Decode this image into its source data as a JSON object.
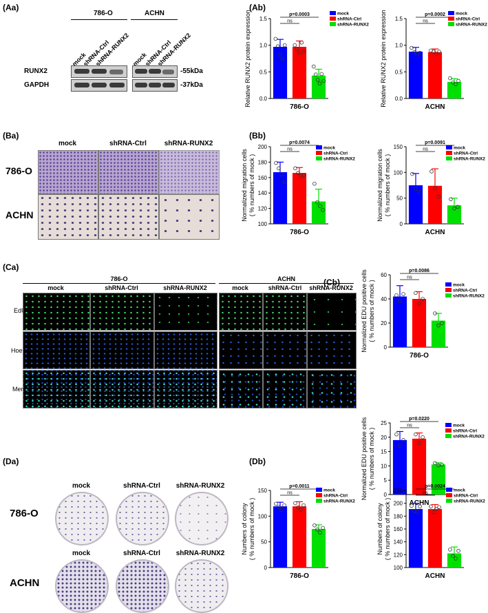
{
  "labels": {
    "Aa": "(Aa)",
    "Ab": "(Ab)",
    "Ba": "(Ba)",
    "Bb": "(Bb)",
    "Ca": "(Ca)",
    "Cb": "(Cb)",
    "Da": "(Da)",
    "Db": "(Db)"
  },
  "blot": {
    "cell_lines": [
      "786-O",
      "ACHN"
    ],
    "lanes": [
      "mock",
      "shRNA-Ctrl",
      "shRNA-RUNX2"
    ],
    "proteins": [
      "RUNX2",
      "GAPDH"
    ],
    "sizes": [
      "-55kDa",
      "-37kDa"
    ]
  },
  "migration": {
    "columns": [
      "mock",
      "shRNA-Ctrl",
      "shRNA-RUNX2"
    ],
    "rows": [
      "786-O",
      "ACHN"
    ]
  },
  "edu": {
    "groups": [
      "786-O",
      "ACHN"
    ],
    "columns": [
      "mock",
      "shRNA-Ctrl",
      "shRNA-RUNX2"
    ],
    "rows": [
      "EdU",
      "Hoechst",
      "Merge"
    ]
  },
  "colony": {
    "columns": [
      "mock",
      "shRNA-Ctrl",
      "shRNA-RUNX2"
    ],
    "rows": [
      "786-O",
      "ACHN"
    ]
  },
  "colors": {
    "mock": "#0000ff",
    "ctrl": "#ff0000",
    "runx2": "#00e000"
  },
  "chart_data": [
    {
      "id": "ab1",
      "type": "bar",
      "categories": [
        "mock",
        "shRNA-Ctrl",
        "shRNA-RUNX2"
      ],
      "values": [
        0.97,
        0.97,
        0.43
      ],
      "errors": [
        0.14,
        0.11,
        0.12
      ],
      "points": [
        [
          1.12,
          0.98,
          0.82,
          0.74,
          1.0
        ],
        [
          1.0,
          0.93,
          0.86,
          1.05,
          0.88
        ],
        [
          0.6,
          0.45,
          0.35,
          0.28,
          0.46,
          0.33
        ]
      ],
      "ylim": [
        0,
        1.5
      ],
      "yticks": [
        "0.0",
        "0.5",
        "1.0",
        "1.5"
      ],
      "ylabel": "Relative RUNX2 protein expression",
      "xlabel": "786-O",
      "pvalue": "p=0.0003",
      "ns": "ns",
      "legend": [
        "mock",
        "shRNA-Ctrl",
        "shRNA-RUNX2"
      ]
    },
    {
      "id": "ab2",
      "type": "bar",
      "categories": [
        "mock",
        "shRNA-Ctrl",
        "shRNA-RUNX2"
      ],
      "values": [
        0.88,
        0.87,
        0.31
      ],
      "errors": [
        0.08,
        0.06,
        0.06
      ],
      "points": [
        [
          0.95,
          0.87,
          0.83,
          0.86
        ],
        [
          0.9,
          0.88,
          0.84,
          0.88
        ],
        [
          0.38,
          0.3,
          0.27,
          0.33
        ]
      ],
      "ylim": [
        0,
        1.5
      ],
      "yticks": [
        "0.0",
        "0.5",
        "1.0",
        "1.5"
      ],
      "ylabel": "Relative RUNX2 protein expression",
      "xlabel": "ACHN",
      "pvalue": "p=0.0002",
      "ns": "ns",
      "legend": [
        "mock",
        "shRNA-Ctrl",
        "shRNA-RUNX2"
      ]
    },
    {
      "id": "bb1",
      "type": "bar",
      "categories": [
        "mock",
        "shRNA-Ctrl",
        "shRNA-RUNX2"
      ],
      "values": [
        167,
        166,
        129
      ],
      "errors": [
        13,
        7,
        16
      ],
      "points": [
        [
          179,
          172,
          164,
          154
        ],
        [
          172,
          166,
          162,
          163
        ],
        [
          152,
          128,
          123,
          118
        ]
      ],
      "ylim": [
        100,
        200
      ],
      "yticks": [
        "100",
        "120",
        "140",
        "160",
        "180",
        "200"
      ],
      "ylabel": "Normalized migration cells",
      "ylabel2": "( % numbers of mock )",
      "xlabel": "786-O",
      "pvalue": "p=0.0074",
      "ns": "ns",
      "legend": [
        "mock",
        "shRNA-Ctrl",
        "shRNA-RUNX2"
      ]
    },
    {
      "id": "bb2",
      "type": "bar",
      "categories": [
        "mock",
        "shRNA-Ctrl",
        "shRNA-RUNX2"
      ],
      "values": [
        75,
        74,
        36
      ],
      "errors": [
        23,
        33,
        14
      ],
      "points": [
        [
          97,
          68,
          62
        ],
        [
          102,
          70,
          53
        ],
        [
          48,
          30,
          33
        ]
      ],
      "ylim": [
        0,
        150
      ],
      "yticks": [
        "0",
        "50",
        "100",
        "150"
      ],
      "ylabel": "Normalized migration cells",
      "ylabel2": "( % numbers of mock )",
      "xlabel": "ACHN",
      "pvalue": "p=0.0091",
      "ns": "ns",
      "legend": [
        "mock",
        "shRNA-Ctrl",
        "shRNA-RUNX2"
      ]
    },
    {
      "id": "cb1",
      "type": "bar",
      "categories": [
        "mock",
        "shRNA-Ctrl",
        "shRNA-RUNX2"
      ],
      "values": [
        42,
        40,
        22
      ],
      "errors": [
        9,
        6,
        6
      ],
      "points": [
        [
          43,
          38,
          44
        ],
        [
          45,
          36,
          40
        ],
        [
          28,
          18,
          20
        ]
      ],
      "ylim": [
        0,
        60
      ],
      "yticks": [
        "0",
        "20",
        "40",
        "60"
      ],
      "ylabel": "Normalized EDU positive cells",
      "ylabel2": "( % numbers of mock )",
      "xlabel": "786-O",
      "pvalue": "p=0.0086",
      "ns": "ns",
      "legend": [
        "mock",
        "shRNA-Ctrl",
        "shRNA-RUNX2"
      ]
    },
    {
      "id": "cb2",
      "type": "bar",
      "categories": [
        "mock",
        "shRNA-Ctrl",
        "shRNA-RUNX2"
      ],
      "values": [
        19,
        19.5,
        10.5
      ],
      "errors": [
        3,
        2,
        0.6
      ],
      "points": [
        [
          21,
          17,
          19
        ],
        [
          21,
          18,
          20
        ],
        [
          11,
          10.2,
          10.4
        ]
      ],
      "ylim": [
        0,
        25
      ],
      "yticks": [
        "0",
        "5",
        "10",
        "15",
        "20",
        "25"
      ],
      "ylabel": "Normalized EDU positive cells",
      "ylabel2": "( % numbers of mock )",
      "xlabel": "ACHN",
      "pvalue": "p=0.0220",
      "ns": "ns",
      "legend": [
        "mock",
        "shRNA-Ctrl",
        "shRNA-RUNX2"
      ]
    },
    {
      "id": "db1",
      "type": "bar",
      "categories": [
        "mock",
        "shRNA-Ctrl",
        "shRNA-RUNX2"
      ],
      "values": [
        119,
        119,
        75
      ],
      "errors": [
        8,
        9,
        8
      ],
      "points": [
        [
          124,
          118,
          112,
          121
        ],
        [
          125,
          117,
          112,
          121
        ],
        [
          82,
          74,
          68,
          77
        ]
      ],
      "ylim": [
        0,
        150
      ],
      "yticks": [
        "0",
        "50",
        "100",
        "150"
      ],
      "ylabel": "Numbers of colony",
      "ylabel2": "( % numbers of mock )",
      "xlabel": "786-O",
      "pvalue": "p=0.0011",
      "ns": "ns",
      "legend": [
        "mock",
        "shRNA-Ctrl",
        "shRNA-RUNX2"
      ]
    },
    {
      "id": "db2",
      "type": "bar",
      "categories": [
        "mock",
        "shRNA-Ctrl",
        "shRNA-RUNX2"
      ],
      "values": [
        191,
        191,
        122
      ],
      "errors": [
        9,
        7,
        10
      ],
      "points": [
        [
          196,
          188,
          186,
          195
        ],
        [
          195,
          186,
          191,
          194
        ],
        [
          128,
          118,
          114,
          126
        ]
      ],
      "ylim": [
        100,
        220
      ],
      "yticks": [
        "100",
        "120",
        "140",
        "160",
        "180",
        "200",
        "220"
      ],
      "ylabel": "Numbers of colony",
      "ylabel2": "( % numbers of mock )",
      "xlabel": "ACHN",
      "pvalue": "p=0.0024",
      "ns": "ns",
      "legend": [
        "mock",
        "shRNA-Ctrl",
        "shRNA-RUNX2"
      ]
    }
  ]
}
